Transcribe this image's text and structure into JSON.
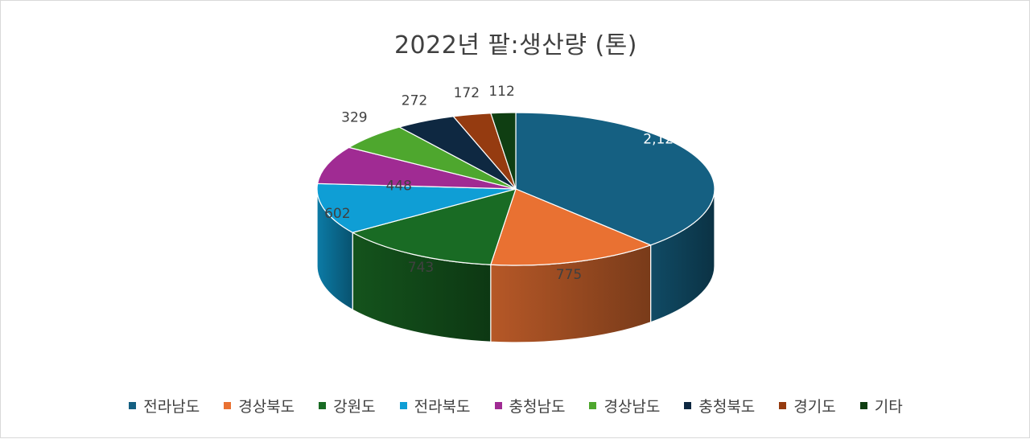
{
  "chart_data": {
    "type": "pie",
    "title": "2022년 팥:생산량 (톤)",
    "categories": [
      "전라남도",
      "경상북도",
      "강원도",
      "전라북도",
      "충청남도",
      "경상남도",
      "충청북도",
      "경기도",
      "기타"
    ],
    "values": [
      2128,
      775,
      743,
      602,
      448,
      329,
      272,
      172,
      112
    ],
    "value_labels": [
      "2,128",
      "775",
      "743",
      "602",
      "448",
      "329",
      "272",
      "172",
      "112"
    ],
    "colors": [
      "#156082",
      "#E97132",
      "#196B24",
      "#0F9ED5",
      "#A02B93",
      "#4EA72E",
      "#0E2841",
      "#953B10",
      "#0F3E12"
    ],
    "legend_position": "bottom",
    "style": "3d"
  }
}
